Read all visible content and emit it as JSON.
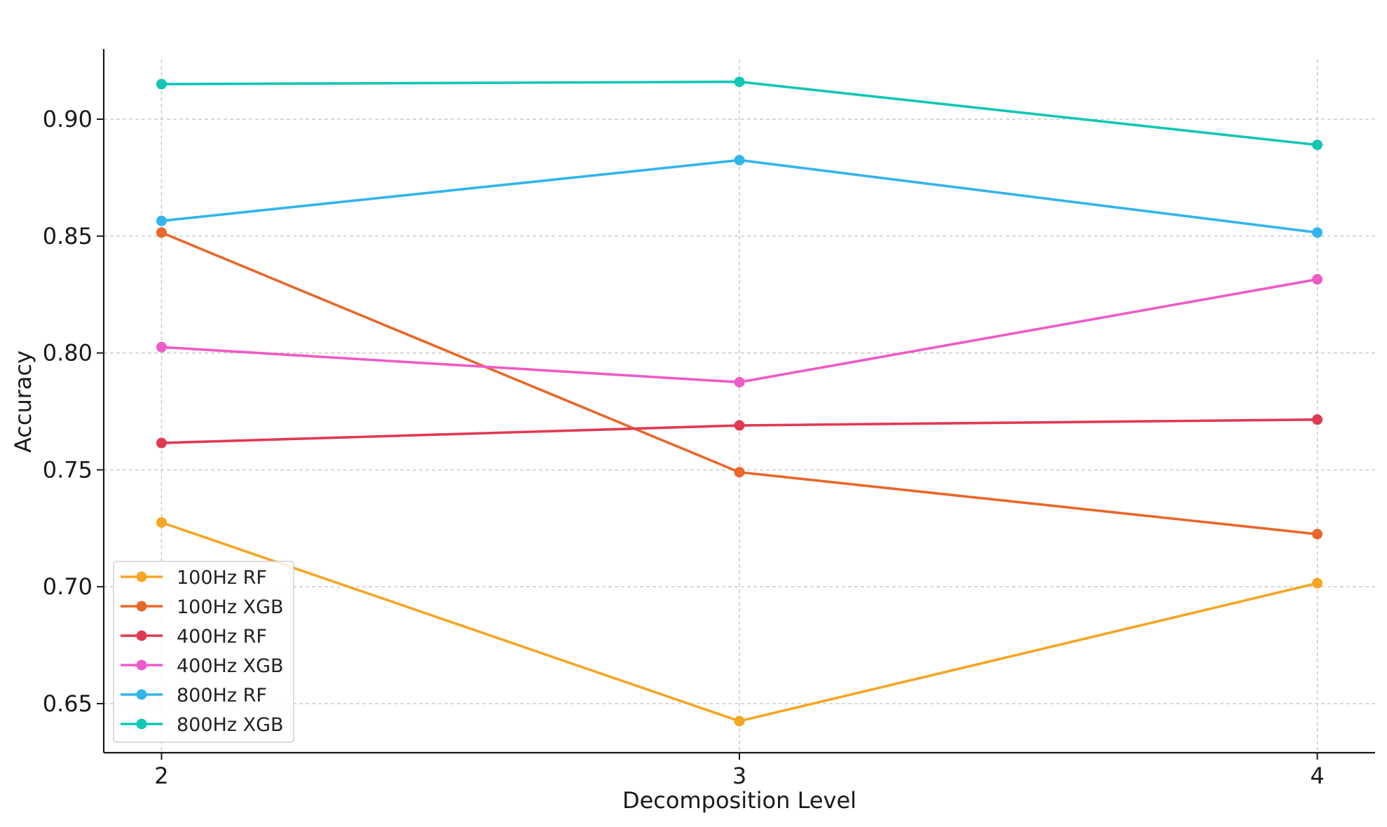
{
  "chart_data": {
    "type": "line",
    "title": "",
    "xlabel": "Decomposition Level",
    "ylabel": "Accuracy",
    "x": [
      2,
      3,
      4
    ],
    "x_ticks": [
      "2",
      "3",
      "4"
    ],
    "y_ticks": [
      "0.65",
      "0.70",
      "0.75",
      "0.80",
      "0.85",
      "0.90"
    ],
    "y_tick_values": [
      0.65,
      0.7,
      0.75,
      0.8,
      0.85,
      0.9
    ],
    "xlim": [
      1.9,
      4.1
    ],
    "ylim": [
      0.629,
      0.93
    ],
    "grid": true,
    "legend_position": "lower-left",
    "series": [
      {
        "name": "100Hz RF",
        "color": "#f5a623",
        "values": [
          0.7275,
          0.6425,
          0.7015
        ]
      },
      {
        "name": "100Hz XGB",
        "color": "#e8672a",
        "values": [
          0.8515,
          0.749,
          0.7225
        ]
      },
      {
        "name": "400Hz RF",
        "color": "#e03a52",
        "values": [
          0.7615,
          0.769,
          0.7715
        ]
      },
      {
        "name": "400Hz XGB",
        "color": "#ee5bc6",
        "values": [
          0.8025,
          0.7875,
          0.8315
        ]
      },
      {
        "name": "800Hz RF",
        "color": "#33b5ec",
        "values": [
          0.8565,
          0.8825,
          0.8515
        ]
      },
      {
        "name": "800Hz XGB",
        "color": "#12c7b3",
        "values": [
          0.915,
          0.916,
          0.889
        ]
      }
    ]
  }
}
